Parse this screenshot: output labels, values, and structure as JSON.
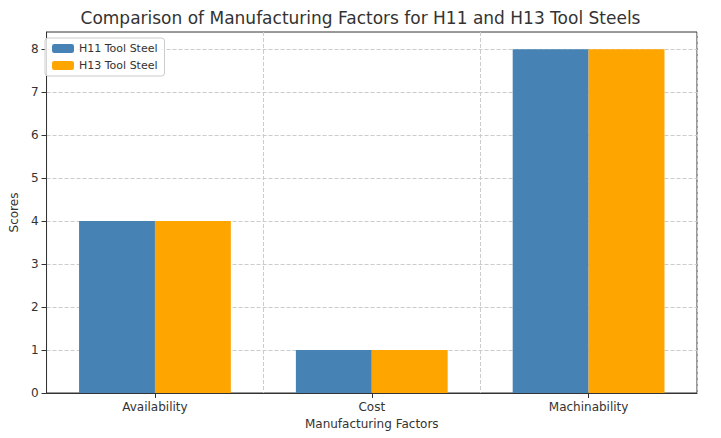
{
  "chart_data": {
    "type": "bar",
    "title": "Comparison of Manufacturing Factors for H11 and H13 Tool Steels",
    "x_label": "Manufacturing Factors",
    "y_label": "Scores",
    "categories": [
      "Availability",
      "Cost",
      "Machinability"
    ],
    "series": [
      {
        "name": "H11 Tool Steel",
        "color": "#4682b4",
        "values": [
          4,
          1,
          8
        ]
      },
      {
        "name": "H13 Tool Steel",
        "color": "#ffa500",
        "values": [
          4,
          1,
          8
        ]
      }
    ],
    "ylim": [
      0,
      8.4
    ],
    "yticks": [
      0,
      1,
      2,
      3,
      4,
      5,
      6,
      7,
      8
    ],
    "grid": true,
    "legend": "upper left"
  }
}
